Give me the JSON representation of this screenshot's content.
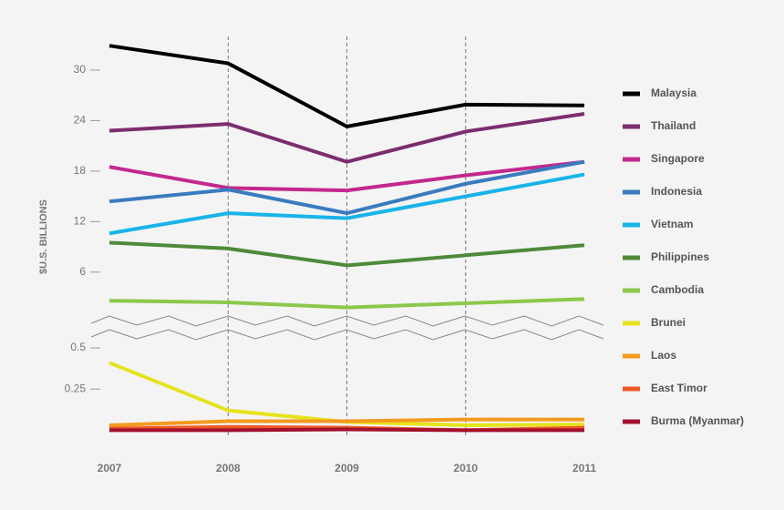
{
  "chart_data": [
    {
      "type": "line",
      "ylabel": "$U.S. BILLIONS",
      "x": [
        2007,
        2008,
        2009,
        2010,
        2011
      ],
      "xlim": [
        2007,
        2011
      ],
      "ylim": [
        1,
        34
      ],
      "yticks": [
        6,
        12,
        18,
        24,
        30
      ],
      "series": [
        {
          "name": "Malaysia",
          "color": "#000000",
          "values": [
            32.9,
            30.8,
            23.3,
            25.9,
            25.8
          ]
        },
        {
          "name": "Thailand",
          "color": "#7b2d6e",
          "values": [
            22.8,
            23.6,
            19.1,
            22.7,
            24.8
          ]
        },
        {
          "name": "Singapore",
          "color": "#c3288e",
          "values": [
            18.5,
            16.0,
            15.7,
            17.5,
            19.1
          ]
        },
        {
          "name": "Indonesia",
          "color": "#3a7bbf",
          "values": [
            14.4,
            15.8,
            13.0,
            16.5,
            19.1
          ]
        },
        {
          "name": "Vietnam",
          "color": "#18b4e8",
          "values": [
            10.6,
            13.0,
            12.4,
            15.0,
            17.6
          ]
        },
        {
          "name": "Philippines",
          "color": "#4e8a3a",
          "values": [
            9.5,
            8.8,
            6.8,
            8.0,
            9.2
          ]
        },
        {
          "name": "Cambodia",
          "color": "#8cc84b",
          "values": [
            2.6,
            2.4,
            1.8,
            2.3,
            2.8
          ]
        }
      ]
    },
    {
      "type": "line",
      "grid_x": true,
      "x": [
        2007,
        2008,
        2009,
        2010,
        2011
      ],
      "xlim": [
        2007,
        2011
      ],
      "ylim": [
        -0.02,
        0.55
      ],
      "yticks": [
        0.25,
        0.5
      ],
      "series": [
        {
          "name": "Brunei",
          "color": "#e6e31e",
          "values": [
            0.41,
            0.12,
            0.05,
            0.03,
            0.035
          ]
        },
        {
          "name": "Laos",
          "color": "#f39a1e",
          "values": [
            0.03,
            0.055,
            0.055,
            0.065,
            0.065
          ]
        },
        {
          "name": "East Timor",
          "color": "#ee5a24",
          "values": [
            0.01,
            0.02,
            0.015,
            0.0,
            0.015
          ]
        },
        {
          "name": "Burma (Myanmar)",
          "color": "#a3102e",
          "values": [
            0.0,
            0.0,
            0.005,
            0.0,
            0.0
          ]
        }
      ]
    }
  ]
}
